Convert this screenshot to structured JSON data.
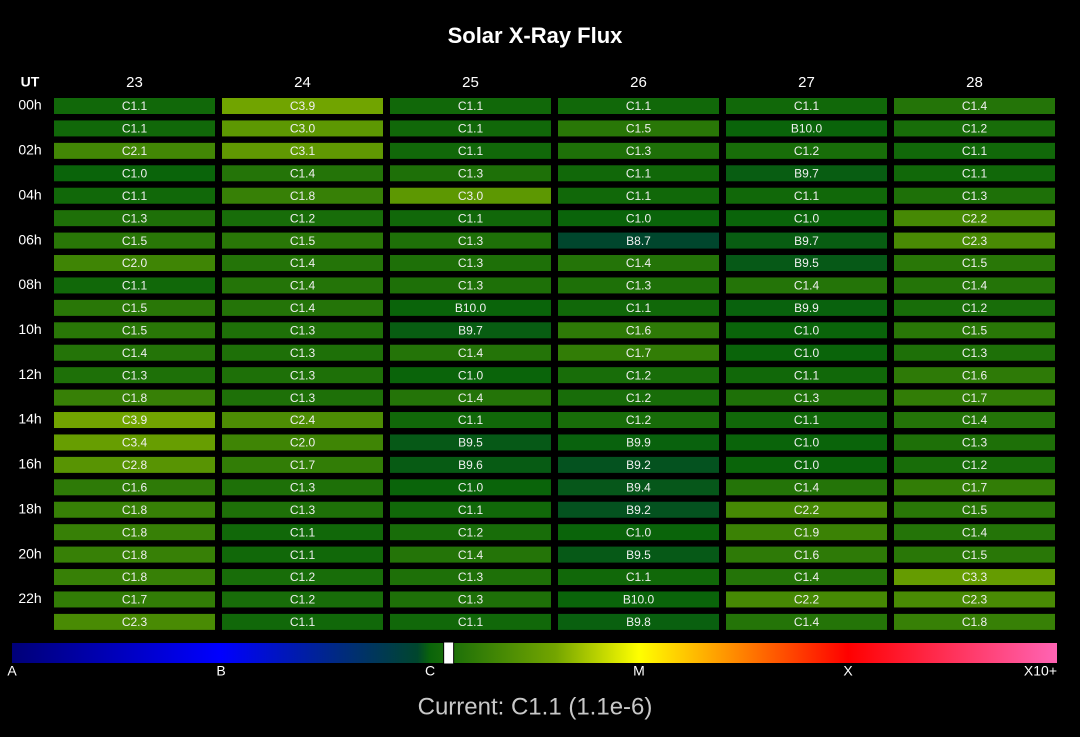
{
  "title": "Solar X-Ray Flux",
  "corner": "UT",
  "days": [
    "23",
    "24",
    "25",
    "26",
    "27",
    "28"
  ],
  "hours": [
    "00h",
    "02h",
    "04h",
    "06h",
    "08h",
    "10h",
    "12h",
    "14h",
    "16h",
    "18h",
    "20h",
    "22h"
  ],
  "cells": [
    [
      "C1.1",
      "C3.9",
      "C1.1",
      "C1.1",
      "C1.1",
      "C1.4"
    ],
    [
      "C1.1",
      "C3.0",
      "C1.1",
      "C1.5",
      "B10.0",
      "C1.2"
    ],
    [
      "C2.1",
      "C3.1",
      "C1.1",
      "C1.3",
      "C1.2",
      "C1.1"
    ],
    [
      "C1.0",
      "C1.4",
      "C1.3",
      "C1.1",
      "B9.7",
      "C1.1"
    ],
    [
      "C1.1",
      "C1.8",
      "C3.0",
      "C1.1",
      "C1.1",
      "C1.3"
    ],
    [
      "C1.3",
      "C1.2",
      "C1.1",
      "C1.0",
      "C1.0",
      "C2.2"
    ],
    [
      "C1.5",
      "C1.5",
      "C1.3",
      "B8.7",
      "B9.7",
      "C2.3"
    ],
    [
      "C2.0",
      "C1.4",
      "C1.3",
      "C1.4",
      "B9.5",
      "C1.5"
    ],
    [
      "C1.1",
      "C1.4",
      "C1.3",
      "C1.3",
      "C1.4",
      "C1.4"
    ],
    [
      "C1.5",
      "C1.4",
      "B10.0",
      "C1.1",
      "B9.9",
      "C1.2"
    ],
    [
      "C1.5",
      "C1.3",
      "B9.7",
      "C1.6",
      "C1.0",
      "C1.5"
    ],
    [
      "C1.4",
      "C1.3",
      "C1.4",
      "C1.7",
      "C1.0",
      "C1.3"
    ],
    [
      "C1.3",
      "C1.3",
      "C1.0",
      "C1.2",
      "C1.1",
      "C1.6"
    ],
    [
      "C1.8",
      "C1.3",
      "C1.4",
      "C1.2",
      "C1.3",
      "C1.7"
    ],
    [
      "C3.9",
      "C2.4",
      "C1.1",
      "C1.2",
      "C1.1",
      "C1.4"
    ],
    [
      "C3.4",
      "C2.0",
      "B9.5",
      "B9.9",
      "C1.0",
      "C1.3"
    ],
    [
      "C2.8",
      "C1.7",
      "B9.6",
      "B9.2",
      "C1.0",
      "C1.2"
    ],
    [
      "C1.6",
      "C1.3",
      "C1.0",
      "B9.4",
      "C1.4",
      "C1.7"
    ],
    [
      "C1.8",
      "C1.3",
      "C1.1",
      "B9.2",
      "C2.2",
      "C1.5"
    ],
    [
      "C1.8",
      "C1.1",
      "C1.2",
      "C1.0",
      "C1.9",
      "C1.4"
    ],
    [
      "C1.8",
      "C1.1",
      "C1.4",
      "B9.5",
      "C1.6",
      "C1.5"
    ],
    [
      "C1.8",
      "C1.2",
      "C1.3",
      "C1.1",
      "C1.4",
      "C3.3"
    ],
    [
      "C1.7",
      "C1.2",
      "C1.3",
      "B10.0",
      "C2.2",
      "C2.3"
    ],
    [
      "C2.3",
      "C1.1",
      "C1.1",
      "B9.8",
      "C1.4",
      "C1.8"
    ]
  ],
  "scale": [
    "A",
    "B",
    "C",
    "M",
    "X",
    "X10+"
  ],
  "current": "Current: C1.1 (1.1e-6)"
}
